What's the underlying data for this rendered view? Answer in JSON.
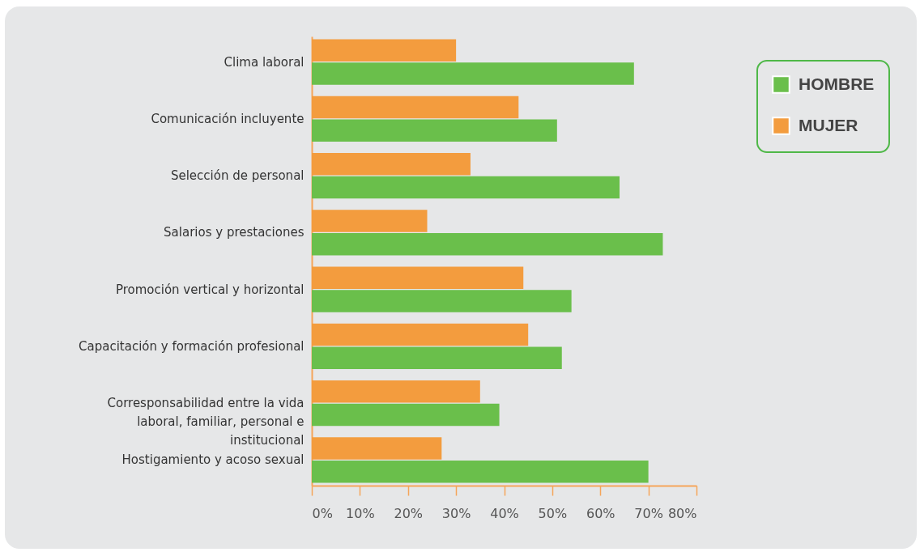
{
  "chart_data": {
    "type": "bar",
    "orientation": "horizontal",
    "categories": [
      "Clima laboral",
      "Comunicación incluyente",
      "Selección de personal",
      "Salarios y prestaciones",
      "Promoción vertical y horizontal",
      "Capacitación y formación profesional",
      "Corresponsabilidad entre la vida\nlaboral, familiar, personal e\ninstitucional",
      "Hostigamiento y acoso sexual"
    ],
    "series": [
      {
        "name": "HOMBRE",
        "color": "#6abf4b",
        "values": [
          67,
          51,
          64,
          73,
          54,
          52,
          39,
          70
        ]
      },
      {
        "name": "MUJER",
        "color": "#f39c3e",
        "values": [
          30,
          43,
          33,
          24,
          44,
          45,
          35,
          27
        ]
      }
    ],
    "xlim": [
      0,
      80
    ],
    "xticks": [
      {
        "value": 0,
        "label": "0%"
      },
      {
        "value": 10,
        "label": "10%"
      },
      {
        "value": 20,
        "label": "20%"
      },
      {
        "value": 30,
        "label": "30%"
      },
      {
        "value": 40,
        "label": "40%"
      },
      {
        "value": 50,
        "label": "50%"
      },
      {
        "value": 60,
        "label": "60%"
      },
      {
        "value": 70,
        "label": "70%"
      },
      {
        "value": 80,
        "label": "80%"
      }
    ],
    "legend": "top right",
    "grid": false
  }
}
